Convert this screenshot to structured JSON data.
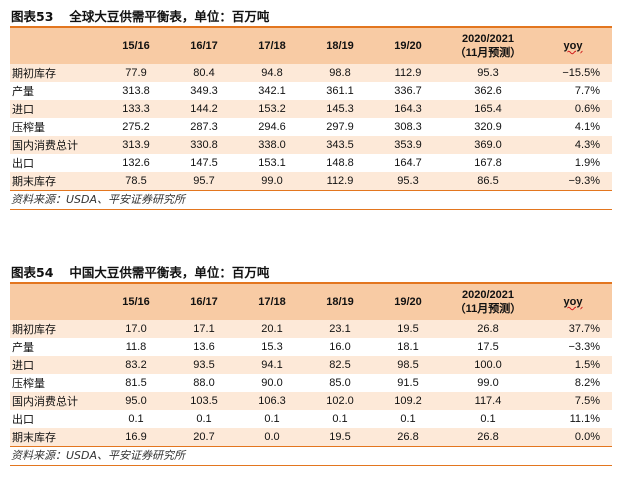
{
  "tables": [
    {
      "label": "图表53",
      "title": "全球大豆供需平衡表，单位：百万吨",
      "headers": [
        "",
        "15/16",
        "16/17",
        "17/18",
        "18/19",
        "19/20",
        "2020/2021",
        "（11月预测）",
        "yoy"
      ],
      "rows": [
        {
          "label": "期初库存",
          "values": [
            "77.9",
            "80.4",
            "94.8",
            "98.8",
            "112.9",
            "95.3"
          ],
          "yoy": "−15.5%"
        },
        {
          "label": "产量",
          "values": [
            "313.8",
            "349.3",
            "342.1",
            "361.1",
            "336.7",
            "362.6"
          ],
          "yoy": "7.7%"
        },
        {
          "label": "进口",
          "values": [
            "133.3",
            "144.2",
            "153.2",
            "145.3",
            "164.3",
            "165.4"
          ],
          "yoy": "0.6%"
        },
        {
          "label": "压榨量",
          "values": [
            "275.2",
            "287.3",
            "294.6",
            "297.9",
            "308.3",
            "320.9"
          ],
          "yoy": "4.1%"
        },
        {
          "label": "国内消费总计",
          "values": [
            "313.9",
            "330.8",
            "338.0",
            "343.5",
            "353.9",
            "369.0"
          ],
          "yoy": "4.3%"
        },
        {
          "label": "出口",
          "values": [
            "132.6",
            "147.5",
            "153.1",
            "148.8",
            "164.7",
            "167.8"
          ],
          "yoy": "1.9%"
        },
        {
          "label": "期末库存",
          "values": [
            "78.5",
            "95.7",
            "99.0",
            "112.9",
            "95.3",
            "86.5"
          ],
          "yoy": "−9.3%"
        }
      ],
      "source": "资料来源：USDA、平安证券研究所"
    },
    {
      "label": "图表54",
      "title": "中国大豆供需平衡表，单位：百万吨",
      "headers": [
        "",
        "15/16",
        "16/17",
        "17/18",
        "18/19",
        "19/20",
        "2020/2021",
        "（11月预测）",
        "yoy"
      ],
      "rows": [
        {
          "label": "期初库存",
          "values": [
            "17.0",
            "17.1",
            "20.1",
            "23.1",
            "19.5",
            "26.8"
          ],
          "yoy": "37.7%"
        },
        {
          "label": "产量",
          "values": [
            "11.8",
            "13.6",
            "15.3",
            "16.0",
            "18.1",
            "17.5"
          ],
          "yoy": "−3.3%"
        },
        {
          "label": "进口",
          "values": [
            "83.2",
            "93.5",
            "94.1",
            "82.5",
            "98.5",
            "100.0"
          ],
          "yoy": "1.5%"
        },
        {
          "label": "压榨量",
          "values": [
            "81.5",
            "88.0",
            "90.0",
            "85.0",
            "91.5",
            "99.0"
          ],
          "yoy": "8.2%"
        },
        {
          "label": "国内消费总计",
          "values": [
            "95.0",
            "103.5",
            "106.3",
            "102.0",
            "109.2",
            "117.4"
          ],
          "yoy": "7.5%"
        },
        {
          "label": "出口",
          "values": [
            "0.1",
            "0.1",
            "0.1",
            "0.1",
            "0.1",
            "0.1"
          ],
          "yoy": "11.1%"
        },
        {
          "label": "期末库存",
          "values": [
            "16.9",
            "20.7",
            "0.0",
            "19.5",
            "26.8",
            "26.8"
          ],
          "yoy": "0.0%"
        }
      ],
      "source": "资料来源：USDA、平安证券研究所"
    }
  ],
  "colors": {
    "accent_line": "#e3761f",
    "header_bg": "#f8cba4",
    "band_bg": "#fde9d8"
  }
}
